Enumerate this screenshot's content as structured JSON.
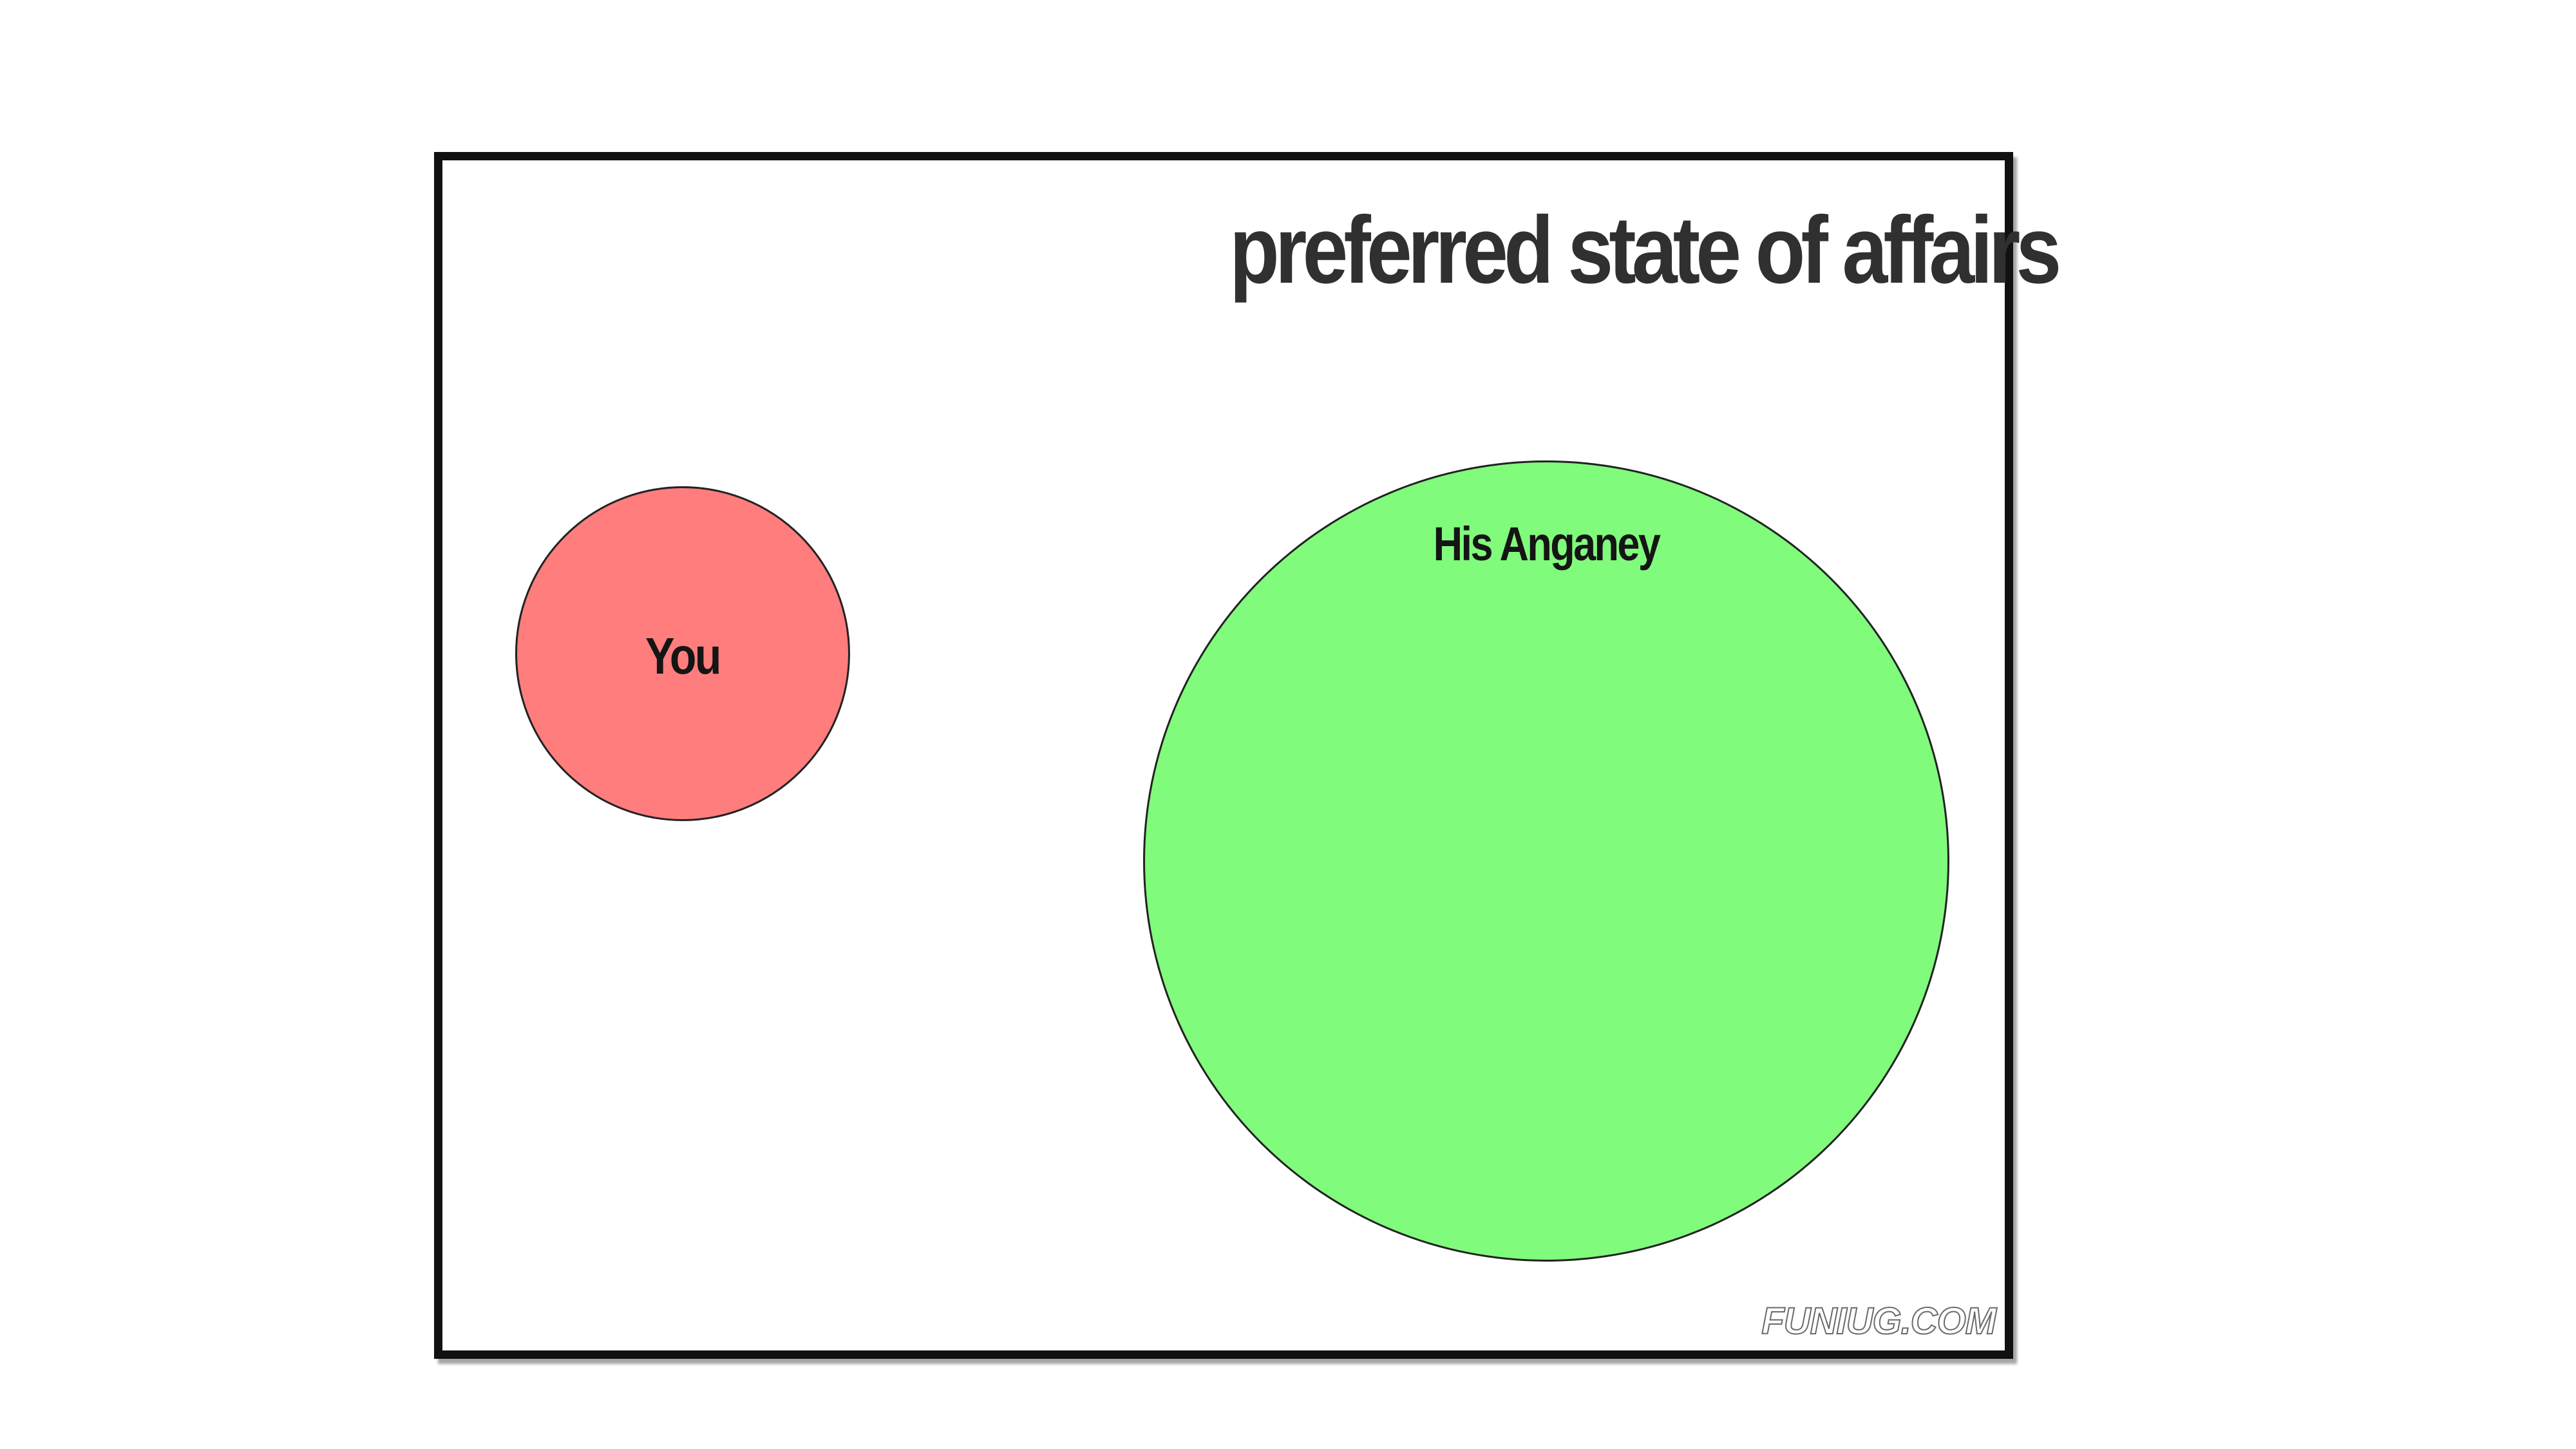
{
  "diagram": {
    "title": "preferred state of affairs",
    "circles": [
      {
        "label": "You",
        "fill_color": "#ff7d7d"
      },
      {
        "label": "His Anganey",
        "fill_color": "#80fb7c"
      }
    ],
    "watermark": "FUNIUG.COM",
    "colors": {
      "frame_border": "#111111",
      "title_text": "#303030",
      "circle_outline": "#222222"
    }
  }
}
